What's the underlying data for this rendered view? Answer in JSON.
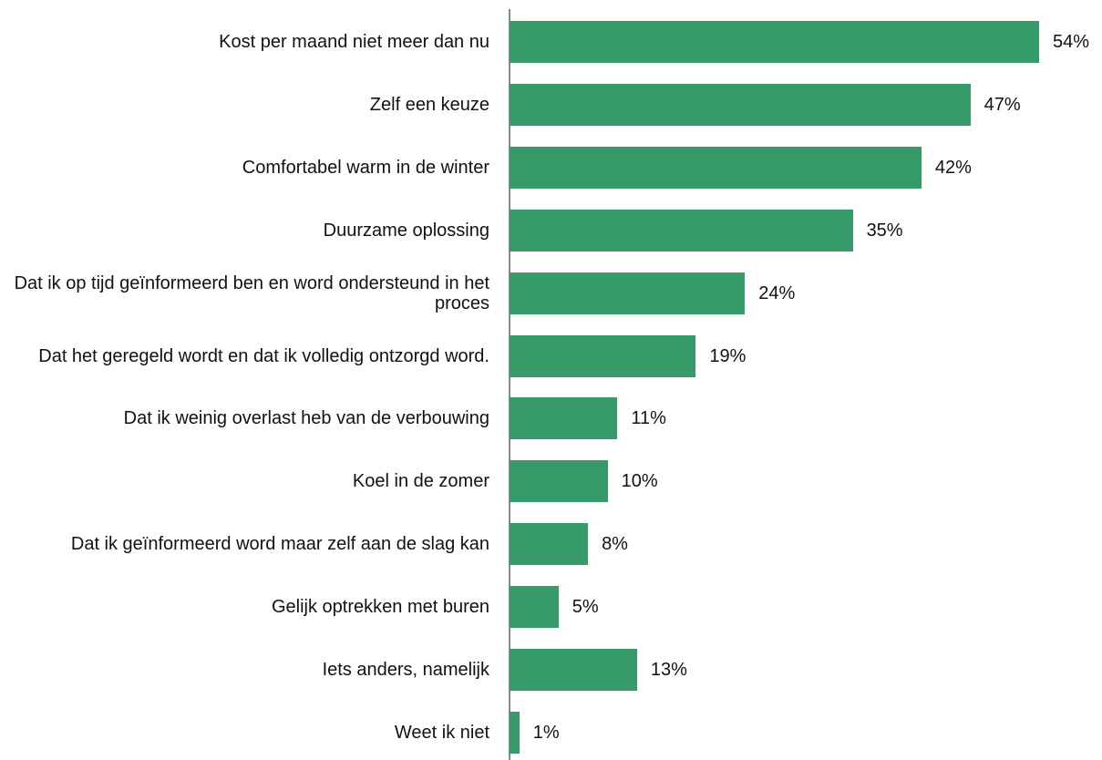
{
  "chart_data": {
    "type": "bar",
    "orientation": "horizontal",
    "color": "#369b69",
    "categories": [
      "Kost per maand niet meer dan nu",
      "Zelf een keuze",
      "Comfortabel warm in de winter",
      "Duurzame oplossing",
      "Dat ik op tijd geïnformeerd ben en word ondersteund in het proces",
      "Dat het geregeld wordt en dat ik volledig ontzorgd word.",
      "Dat ik weinig overlast heb van de verbouwing",
      "Koel in de zomer",
      "Dat ik geïnformeerd word maar zelf aan de slag kan",
      "Gelijk optrekken met buren",
      "Iets anders, namelijk",
      "Weet ik niet"
    ],
    "values": [
      54,
      47,
      42,
      35,
      24,
      19,
      11,
      10,
      8,
      5,
      13,
      1
    ],
    "value_labels": [
      "54%",
      "47%",
      "42%",
      "35%",
      "24%",
      "19%",
      "11%",
      "10%",
      "8%",
      "5%",
      "13%",
      "1%"
    ]
  }
}
